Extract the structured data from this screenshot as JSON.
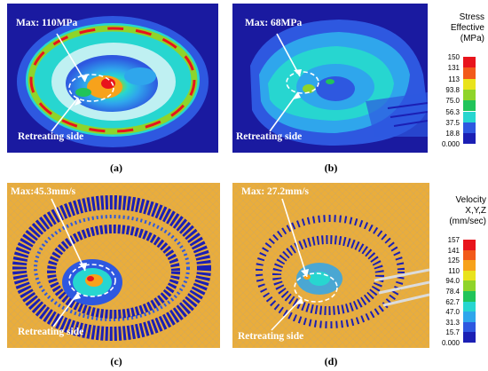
{
  "panels": {
    "a": {
      "label": "(a)",
      "max_text": "Max: 110MPa",
      "side_text": "Retreating side"
    },
    "b": {
      "label": "(b)",
      "max_text": "Max: 68MPa",
      "side_text": "Retreating side"
    },
    "c": {
      "label": "(c)",
      "max_text": "Max:45.3mm/s",
      "side_text": "Retreating side"
    },
    "d": {
      "label": "(d)",
      "max_text": "Max: 27.2mm/s",
      "side_text": "Retreating side"
    }
  },
  "stress_legend": {
    "title_lines": [
      "Stress",
      "Effective",
      "(MPa)"
    ],
    "ticks": [
      "150",
      "131",
      "113",
      "93.8",
      "75.0",
      "56.3",
      "37.5",
      "18.8",
      "0.000"
    ]
  },
  "velocity_legend": {
    "title_lines": [
      "Velocity",
      "X,Y,Z",
      "(mm/sec)"
    ],
    "ticks": [
      "157",
      "141",
      "125",
      "110",
      "94.0",
      "78.4",
      "62.7",
      "47.0",
      "31.3",
      "15.7",
      "0.000"
    ]
  },
  "colors": {
    "scale": [
      "#e8141c",
      "#f25a1a",
      "#f7a21b",
      "#e9e31c",
      "#8fd42a",
      "#21c45a",
      "#27d6d0",
      "#2fa6ec",
      "#2e58e0",
      "#1b1fb4"
    ],
    "background_blue": "#1a1aa0",
    "mesh_yellow": "#e9ad3c",
    "annotation_text": "#ffffff"
  }
}
